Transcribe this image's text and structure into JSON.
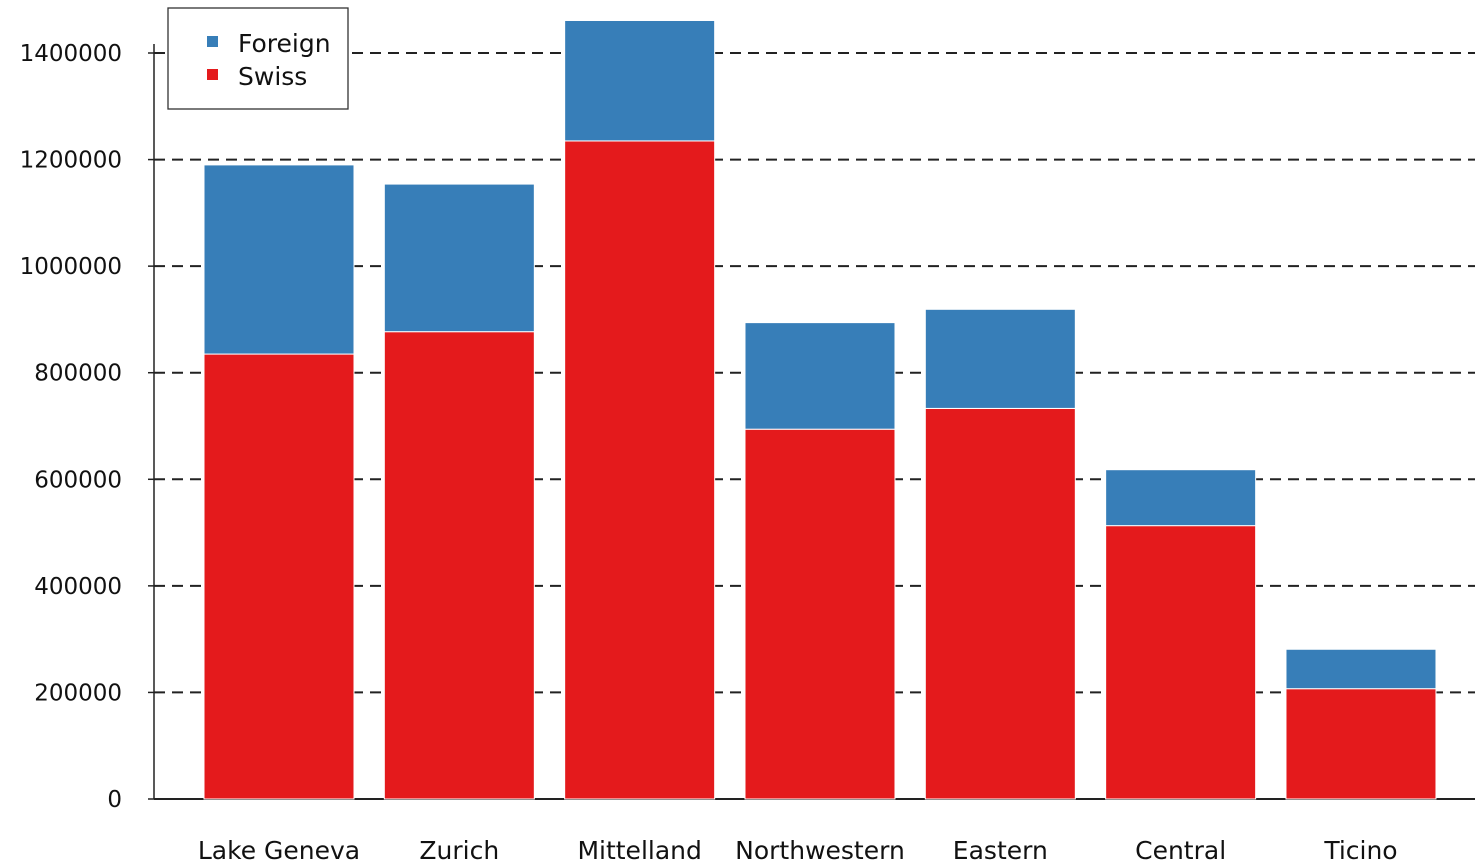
{
  "chart_data": {
    "type": "bar",
    "stacked": true,
    "categories": [
      "Lake Geneva",
      "Zurich",
      "Mittelland",
      "Northwestern",
      "Eastern",
      "Central",
      "Ticino"
    ],
    "series": [
      {
        "name": "Swiss",
        "color": "#e41a1c",
        "values": [
          835000,
          877000,
          1235000,
          694000,
          733000,
          513000,
          207000
        ]
      },
      {
        "name": "Foreign",
        "color": "#377eb8",
        "values": [
          355000,
          277000,
          226000,
          200000,
          186000,
          105000,
          74000
        ]
      }
    ],
    "ylim": [
      0,
      1400000
    ],
    "yticks": [
      "0",
      "200000",
      "400000",
      "600000",
      "800000",
      "1000000",
      "1200000",
      "1400000"
    ],
    "grid": true,
    "grid_style": "dashed",
    "legend_position": "top-left",
    "legend_order": [
      "Foreign",
      "Swiss"
    ]
  }
}
